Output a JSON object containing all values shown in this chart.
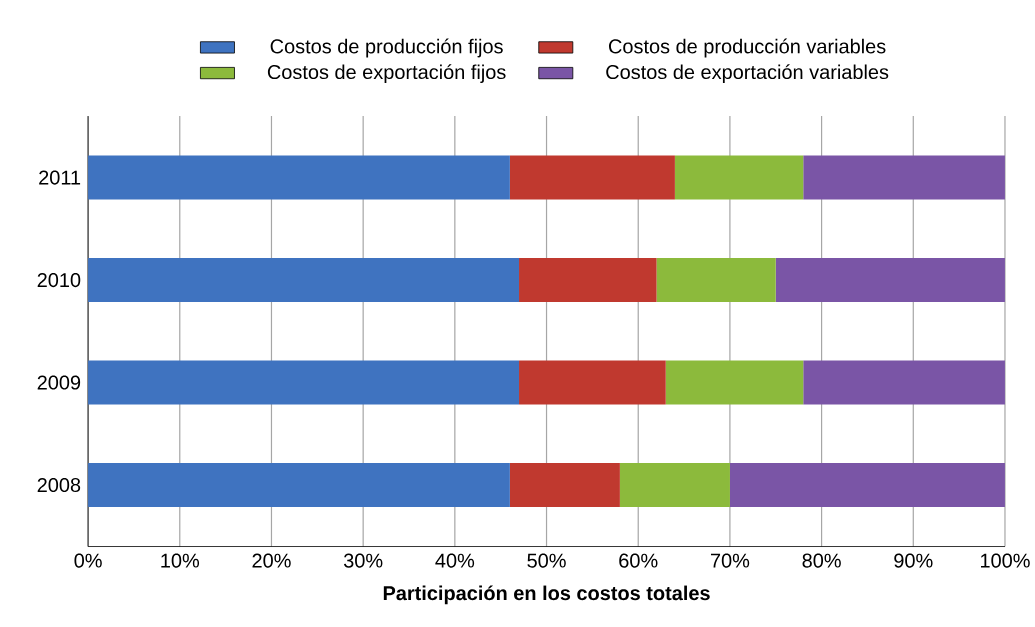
{
  "chart_data": {
    "type": "bar",
    "orientation": "horizontal",
    "stacked": true,
    "xlabel": "Participación en los costos totales",
    "categories": [
      "2011",
      "2010",
      "2009",
      "2008"
    ],
    "series": [
      {
        "name": "Costos de producción fijos",
        "color": "#3f73c0",
        "values": [
          46,
          47,
          47,
          46
        ]
      },
      {
        "name": "Costos de producción variables",
        "color": "#c0392f",
        "values": [
          18,
          15,
          16,
          12
        ]
      },
      {
        "name": "Costos de exportación fijos",
        "color": "#8cba3c",
        "values": [
          14,
          13,
          15,
          12
        ]
      },
      {
        "name": "Costos de exportación variables",
        "color": "#7a55a6",
        "values": [
          22,
          25,
          22,
          30
        ]
      }
    ],
    "xlim": [
      0,
      100
    ],
    "xticks": [
      {
        "value": 0,
        "label": "0%"
      },
      {
        "value": 10,
        "label": "10%"
      },
      {
        "value": 20,
        "label": "20%"
      },
      {
        "value": 30,
        "label": "30%"
      },
      {
        "value": 40,
        "label": "40%"
      },
      {
        "value": 50,
        "label": "50%"
      },
      {
        "value": 60,
        "label": "60%"
      },
      {
        "value": 70,
        "label": "70%"
      },
      {
        "value": 80,
        "label": "80%"
      },
      {
        "value": 90,
        "label": "90%"
      },
      {
        "value": 100,
        "label": "100%"
      }
    ],
    "grid": "x",
    "legend": "top"
  }
}
